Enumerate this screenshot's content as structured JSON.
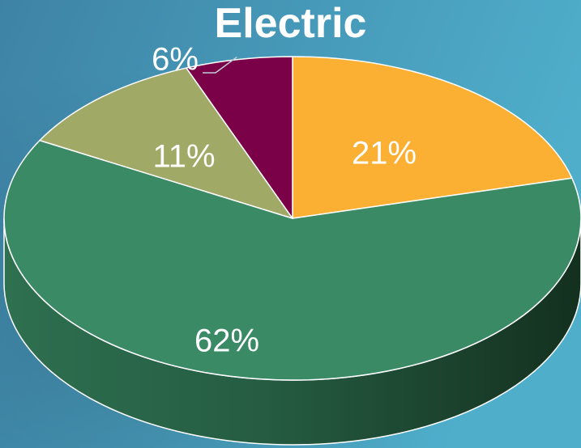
{
  "chart_data": {
    "type": "pie",
    "title": "Electric",
    "categories": [
      "",
      "",
      "",
      ""
    ],
    "values": [
      21,
      62,
      11,
      6
    ],
    "labels": [
      "21%",
      "62%",
      "11%",
      "6%"
    ],
    "colors": [
      "#FBB034",
      "#3A8A66",
      "#A1A966",
      "#7A0048"
    ],
    "legend": "none",
    "style": "3d"
  },
  "background": {
    "colors": [
      "#3E83A6",
      "#4FAFCB"
    ]
  }
}
